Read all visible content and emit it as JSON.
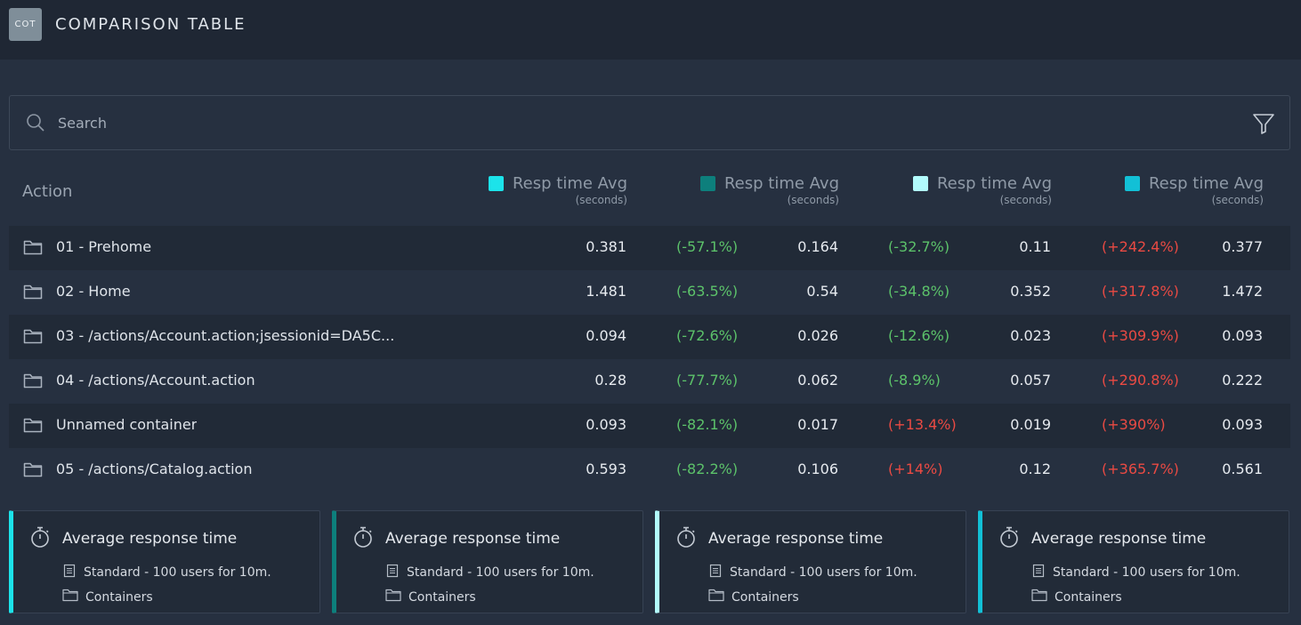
{
  "header": {
    "logo_text": "COT",
    "title": "COMPARISON TABLE"
  },
  "search": {
    "placeholder": "Search",
    "value": ""
  },
  "table": {
    "action_header": "Action",
    "columns": [
      {
        "label": "Resp time Avg",
        "unit": "(seconds)",
        "color": "#1ce3ea"
      },
      {
        "label": "Resp time Avg",
        "unit": "(seconds)",
        "color": "#0d7f7c"
      },
      {
        "label": "Resp time Avg",
        "unit": "(seconds)",
        "color": "#b2fbfc"
      },
      {
        "label": "Resp time Avg",
        "unit": "(seconds)",
        "color": "#12c0d6"
      }
    ],
    "rows": [
      {
        "name": "01 - Prehome",
        "v1": "0.381",
        "d2": "(-57.1%)",
        "d2s": "good",
        "v2": "0.164",
        "d3": "(-32.7%)",
        "d3s": "good",
        "v3": "0.11",
        "d4": "(+242.4%)",
        "d4s": "bad",
        "v4": "0.377"
      },
      {
        "name": "02 - Home",
        "v1": "1.481",
        "d2": "(-63.5%)",
        "d2s": "good",
        "v2": "0.54",
        "d3": "(-34.8%)",
        "d3s": "good",
        "v3": "0.352",
        "d4": "(+317.8%)",
        "d4s": "bad",
        "v4": "1.472"
      },
      {
        "name": "03 - /actions/Account.action;jsessionid=DA5C...",
        "v1": "0.094",
        "d2": "(-72.6%)",
        "d2s": "good",
        "v2": "0.026",
        "d3": "(-12.6%)",
        "d3s": "good",
        "v3": "0.023",
        "d4": "(+309.9%)",
        "d4s": "bad",
        "v4": "0.093"
      },
      {
        "name": "04 - /actions/Account.action",
        "v1": "0.28",
        "d2": "(-77.7%)",
        "d2s": "good",
        "v2": "0.062",
        "d3": "(-8.9%)",
        "d3s": "good",
        "v3": "0.057",
        "d4": "(+290.8%)",
        "d4s": "bad",
        "v4": "0.222"
      },
      {
        "name": "Unnamed container",
        "v1": "0.093",
        "d2": "(-82.1%)",
        "d2s": "good",
        "v2": "0.017",
        "d3": "(+13.4%)",
        "d3s": "bad",
        "v3": "0.019",
        "d4": "(+390%)",
        "d4s": "bad",
        "v4": "0.093"
      },
      {
        "name": "05 - /actions/Catalog.action",
        "v1": "0.593",
        "d2": "(-82.2%)",
        "d2s": "good",
        "v2": "0.106",
        "d3": "(+14%)",
        "d3s": "bad",
        "v3": "0.12",
        "d4": "(+365.7%)",
        "d4s": "bad",
        "v4": "0.561"
      }
    ]
  },
  "cards": [
    {
      "title": "Average response time",
      "scenario": "Standard - 100 users for 10m.",
      "scope": "Containers",
      "color": "#1ce3ea"
    },
    {
      "title": "Average response time",
      "scenario": "Standard - 100 users for 10m.",
      "scope": "Containers",
      "color": "#0d7f7c"
    },
    {
      "title": "Average response time",
      "scenario": "Standard - 100 users for 10m.",
      "scope": "Containers",
      "color": "#b2fbfc"
    },
    {
      "title": "Average response time",
      "scenario": "Standard - 100 users for 10m.",
      "scope": "Containers",
      "color": "#12c0d6"
    }
  ],
  "icons": {
    "search": "search-icon",
    "filter": "filter-icon",
    "folder": "folder-icon",
    "timer": "stopwatch-icon",
    "document": "document-icon"
  }
}
